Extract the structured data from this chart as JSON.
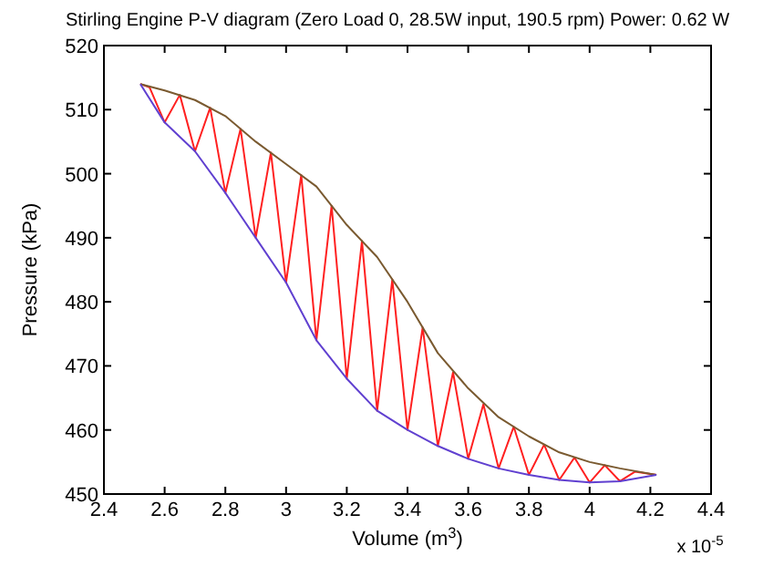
{
  "chart_data": {
    "type": "line",
    "title": "Stirling Engine P-V diagram (Zero Load 0, 28.5W input, 190.5 rpm) Power: 0.62 W",
    "xlabel": "Volume (m$^{3}$)",
    "ylabel": "Pressure (kPa)",
    "annotations": [
      "x 10$^{-5}$"
    ],
    "xlim": [
      2.4,
      4.4
    ],
    "xticks": [
      2.4,
      2.6,
      2.8,
      3,
      3.2,
      3.4,
      3.6,
      3.8,
      4,
      4.2,
      4.4
    ],
    "ylim": [
      450,
      520
    ],
    "yticks": [
      450,
      460,
      470,
      480,
      490,
      500,
      510,
      520
    ],
    "grid": false,
    "marker": "none",
    "line_style": "solid",
    "series": [
      {
        "color": "#ff2020",
        "x": [
          2.52,
          2.55,
          2.6,
          2.65,
          2.7,
          2.75,
          2.8,
          2.85,
          2.9,
          2.95,
          3.0,
          3.05,
          3.1,
          3.15,
          3.2,
          3.25,
          3.3,
          3.35,
          3.4,
          3.45,
          3.5,
          3.55,
          3.6,
          3.65,
          3.7,
          3.75,
          3.8,
          3.85,
          3.9,
          3.95,
          4.0,
          4.05,
          4.1,
          4.15,
          4.22
        ],
        "values": [
          514,
          513.5,
          508,
          512.3,
          503.5,
          510.3,
          497,
          507,
          490,
          503.3,
          483,
          499.8,
          474,
          495,
          468,
          489.5,
          463,
          483.5,
          460,
          476,
          457.5,
          469,
          455.5,
          464,
          454,
          460.5,
          453,
          457.7,
          452.2,
          455.7,
          451.8,
          454.5,
          452,
          453.5,
          453
        ]
      },
      {
        "color": "#7a5a30",
        "x": [
          2.52,
          2.6,
          2.7,
          2.8,
          2.9,
          3.0,
          3.1,
          3.2,
          3.3,
          3.4,
          3.5,
          3.6,
          3.7,
          3.8,
          3.9,
          4.0,
          4.1,
          4.22
        ],
        "values": [
          514,
          513,
          511.5,
          509,
          505,
          501.5,
          498,
          492,
          487,
          480,
          472,
          466.5,
          462,
          459,
          456.5,
          455,
          454,
          453
        ]
      },
      {
        "color": "#6040d0",
        "x": [
          2.52,
          2.6,
          2.7,
          2.8,
          2.9,
          3.0,
          3.1,
          3.2,
          3.3,
          3.4,
          3.5,
          3.6,
          3.7,
          3.8,
          3.9,
          4.0,
          4.1,
          4.22
        ],
        "values": [
          514,
          508,
          503.5,
          497,
          490,
          483,
          474,
          468,
          463,
          460,
          457.5,
          455.5,
          454,
          453,
          452.2,
          451.8,
          452,
          453
        ]
      }
    ]
  }
}
